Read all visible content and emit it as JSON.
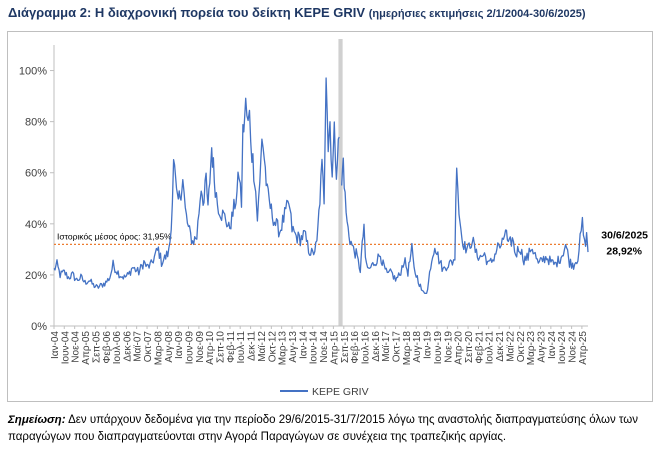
{
  "title": {
    "main": "Διάγραμμα 2: Η διαχρονική πορεία του δείκτη ΚΕΡΕ GRIV",
    "sub": "(ημερήσιες εκτιμήσεις 2/1/2004-30/6/2025)"
  },
  "note": {
    "label": "Σημείωση:",
    "text": "Δεν υπάρχουν δεδομένα για την περίοδο 29/6/2015-31/7/2015 λόγω της αναστολής διαπραγματεύσης όλων των παραγώγων που διαπραγματεύονται στην Αγορά Παραγώγων σε συνέχεια της τραπεζικής αργίας."
  },
  "colors": {
    "series": "#4472c4",
    "mean_line": "#ed7d31",
    "gap_band": "#d0d0d0",
    "title": "#1f3864"
  },
  "chart_data": {
    "type": "line",
    "title": "",
    "xlabel": "",
    "ylabel": "",
    "ylim": [
      0,
      110
    ],
    "yticks": [
      0,
      20,
      40,
      60,
      80,
      100
    ],
    "ytick_format": "percent",
    "grid": false,
    "legend": "bottom",
    "x_range": [
      "2004-01-02",
      "2025-06-30"
    ],
    "xtick_labels": [
      "Ιαν-04",
      "Ιουν-04",
      "Νοε-04",
      "Απρ-05",
      "Σεπ-05",
      "Φεβ-06",
      "Ιουλ-06",
      "Δεκ-06",
      "Μαϊ-07",
      "Οκτ-07",
      "Μαρ-08",
      "Αυγ-08",
      "Ιαν-09",
      "Ιουν-09",
      "Νοε-09",
      "Απρ-10",
      "Σεπ-10",
      "Φεβ-11",
      "Ιουλ-11",
      "Δεκ-11",
      "Μαϊ-12",
      "Οκτ-12",
      "Μαρ-13",
      "Αυγ-13",
      "Ιαν-14",
      "Ιουν-14",
      "Νοε-14",
      "Απρ-15",
      "Σεπ-15",
      "Φεβ-16",
      "Ιουλ-16",
      "Δεκ-16",
      "Μαϊ-17",
      "Οκτ-17",
      "Μαρ-18",
      "Αυγ-18",
      "Ιαν-19",
      "Ιουν-19",
      "Νοε-19",
      "Απρ-20",
      "Σεπ-20",
      "Φεβ-21",
      "Ιουλ-21",
      "Δεκ-21",
      "Μαϊ-22",
      "Οκτ-22",
      "Μαρ-23",
      "Αυγ-23",
      "Ιαν-24",
      "Ιουν-24",
      "Νοε-24",
      "Απρ-25"
    ],
    "gap_period": [
      "2015-06-29",
      "2015-07-31"
    ],
    "mean": {
      "value": 31.95,
      "label": "Ιστορικός μέσος όρος: 31,95%"
    },
    "end_label": {
      "date": "30/6/2025",
      "value_text": "28,92%"
    },
    "series": [
      {
        "name": "KEPE GRIV",
        "points": [
          [
            "2004-01-02",
            22
          ],
          [
            "2004-02-15",
            24
          ],
          [
            "2004-04-01",
            20
          ],
          [
            "2004-06-01",
            21
          ],
          [
            "2004-08-01",
            19
          ],
          [
            "2004-10-01",
            20
          ],
          [
            "2004-12-01",
            18
          ],
          [
            "2005-02-01",
            19
          ],
          [
            "2005-04-01",
            17
          ],
          [
            "2005-06-01",
            18
          ],
          [
            "2005-08-01",
            16
          ],
          [
            "2005-10-01",
            15
          ],
          [
            "2005-12-01",
            16
          ],
          [
            "2006-02-01",
            17
          ],
          [
            "2006-04-01",
            19
          ],
          [
            "2006-05-20",
            24
          ],
          [
            "2006-07-01",
            22
          ],
          [
            "2006-09-01",
            20
          ],
          [
            "2006-11-01",
            19
          ],
          [
            "2007-01-01",
            20
          ],
          [
            "2007-03-01",
            23
          ],
          [
            "2007-04-15",
            22
          ],
          [
            "2007-06-01",
            21
          ],
          [
            "2007-08-15",
            25
          ],
          [
            "2007-10-01",
            23
          ],
          [
            "2007-12-01",
            24
          ],
          [
            "2008-02-01",
            28
          ],
          [
            "2008-03-15",
            30
          ],
          [
            "2008-05-01",
            25
          ],
          [
            "2008-07-01",
            27
          ],
          [
            "2008-08-15",
            29
          ],
          [
            "2008-09-20",
            38
          ],
          [
            "2008-10-25",
            67
          ],
          [
            "2008-11-25",
            55
          ],
          [
            "2008-12-20",
            48
          ],
          [
            "2009-01-15",
            50
          ],
          [
            "2009-03-10",
            57
          ],
          [
            "2009-04-15",
            45
          ],
          [
            "2009-06-01",
            38
          ],
          [
            "2009-08-01",
            33
          ],
          [
            "2009-10-01",
            35
          ],
          [
            "2009-12-05",
            55
          ],
          [
            "2010-01-15",
            48
          ],
          [
            "2010-02-15",
            58
          ],
          [
            "2010-03-15",
            45
          ],
          [
            "2010-05-08",
            70
          ],
          [
            "2010-06-15",
            58
          ],
          [
            "2010-08-01",
            48
          ],
          [
            "2010-10-01",
            44
          ],
          [
            "2010-12-01",
            42
          ],
          [
            "2011-01-15",
            38
          ],
          [
            "2011-03-01",
            42
          ],
          [
            "2011-05-15",
            52
          ],
          [
            "2011-06-15",
            60
          ],
          [
            "2011-07-20",
            48
          ],
          [
            "2011-08-10",
            75
          ],
          [
            "2011-09-20",
            86
          ],
          [
            "2011-10-25",
            78
          ],
          [
            "2011-11-15",
            82
          ],
          [
            "2011-12-20",
            68
          ],
          [
            "2012-02-01",
            58
          ],
          [
            "2012-03-10",
            42
          ],
          [
            "2012-04-15",
            55
          ],
          [
            "2012-05-15",
            75
          ],
          [
            "2012-06-20",
            66
          ],
          [
            "2012-08-01",
            52
          ],
          [
            "2012-10-01",
            45
          ],
          [
            "2012-12-01",
            40
          ],
          [
            "2013-02-01",
            37
          ],
          [
            "2013-04-01",
            42
          ],
          [
            "2013-06-15",
            48
          ],
          [
            "2013-08-01",
            38
          ],
          [
            "2013-10-01",
            35
          ],
          [
            "2013-12-01",
            34
          ],
          [
            "2014-02-01",
            36
          ],
          [
            "2014-04-01",
            30
          ],
          [
            "2014-06-01",
            28
          ],
          [
            "2014-08-01",
            32
          ],
          [
            "2014-10-15",
            62
          ],
          [
            "2014-11-15",
            50
          ],
          [
            "2014-12-15",
            104
          ],
          [
            "2015-01-15",
            70
          ],
          [
            "2015-02-10",
            80
          ],
          [
            "2015-03-15",
            60
          ],
          [
            "2015-04-15",
            75
          ],
          [
            "2015-05-15",
            62
          ],
          [
            "2015-06-26",
            74
          ],
          [
            "2015-08-01",
            55
          ],
          [
            "2015-08-25",
            65
          ],
          [
            "2015-09-20",
            50
          ],
          [
            "2015-10-20",
            40
          ],
          [
            "2015-12-01",
            34
          ],
          [
            "2016-01-20",
            30
          ],
          [
            "2016-03-01",
            28
          ],
          [
            "2016-05-01",
            22
          ],
          [
            "2016-06-24",
            40
          ],
          [
            "2016-07-15",
            25
          ],
          [
            "2016-09-01",
            22
          ],
          [
            "2016-11-01",
            24
          ],
          [
            "2017-01-01",
            26
          ],
          [
            "2017-02-20",
            28
          ],
          [
            "2017-04-01",
            24
          ],
          [
            "2017-06-01",
            20
          ],
          [
            "2017-08-01",
            21
          ],
          [
            "2017-10-01",
            18
          ],
          [
            "2017-12-01",
            20
          ],
          [
            "2018-02-05",
            26
          ],
          [
            "2018-04-01",
            21
          ],
          [
            "2018-05-29",
            30
          ],
          [
            "2018-07-01",
            22
          ],
          [
            "2018-09-01",
            18
          ],
          [
            "2018-11-01",
            13
          ],
          [
            "2019-01-15",
            14
          ],
          [
            "2019-03-01",
            24
          ],
          [
            "2019-05-01",
            32
          ],
          [
            "2019-07-01",
            26
          ],
          [
            "2019-09-01",
            22
          ],
          [
            "2019-11-01",
            24
          ],
          [
            "2020-01-15",
            25
          ],
          [
            "2020-02-20",
            27
          ],
          [
            "2020-03-18",
            67
          ],
          [
            "2020-04-20",
            45
          ],
          [
            "2020-06-01",
            35
          ],
          [
            "2020-07-15",
            31
          ],
          [
            "2020-09-01",
            30
          ],
          [
            "2020-11-01",
            34
          ],
          [
            "2021-01-01",
            28
          ],
          [
            "2021-03-01",
            27
          ],
          [
            "2021-05-01",
            28
          ],
          [
            "2021-07-01",
            24
          ],
          [
            "2021-09-01",
            26
          ],
          [
            "2021-11-26",
            32
          ],
          [
            "2022-01-01",
            30
          ],
          [
            "2022-03-07",
            38
          ],
          [
            "2022-04-15",
            31
          ],
          [
            "2022-06-15",
            34
          ],
          [
            "2022-08-01",
            28
          ],
          [
            "2022-10-01",
            31
          ],
          [
            "2022-12-01",
            26
          ],
          [
            "2023-02-01",
            27
          ],
          [
            "2023-03-20",
            31
          ],
          [
            "2023-05-01",
            29
          ],
          [
            "2023-07-01",
            24
          ],
          [
            "2023-09-01",
            26
          ],
          [
            "2023-11-01",
            27
          ],
          [
            "2024-01-01",
            25
          ],
          [
            "2024-03-01",
            24
          ],
          [
            "2024-05-01",
            26
          ],
          [
            "2024-06-15",
            28
          ],
          [
            "2024-08-05",
            32
          ],
          [
            "2024-10-01",
            25
          ],
          [
            "2024-12-01",
            24
          ],
          [
            "2025-02-01",
            27
          ],
          [
            "2025-04-08",
            40
          ],
          [
            "2025-05-10",
            32
          ],
          [
            "2025-06-10",
            35
          ],
          [
            "2025-06-30",
            28.92
          ]
        ]
      }
    ]
  }
}
